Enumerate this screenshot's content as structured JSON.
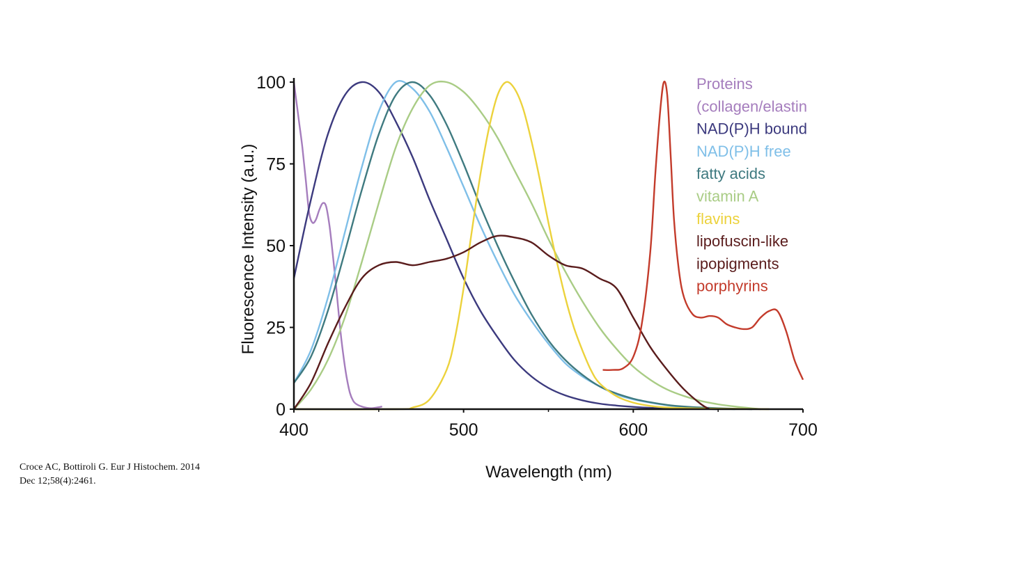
{
  "citation": {
    "line1": "Croce AC, Bottiroli G. Eur J Histochem. 2014",
    "line2": "Dec 12;58(4):2461."
  },
  "chart_data": {
    "type": "line",
    "title": "",
    "xlabel": "Wavelength (nm)",
    "ylabel": "Fluorescence Intensity (a.u.)",
    "xlim": [
      400,
      700
    ],
    "ylim": [
      0,
      100
    ],
    "xticks": [
      400,
      500,
      600,
      700
    ],
    "yticks": [
      0,
      25,
      50,
      75,
      100
    ],
    "grid": false,
    "legend_position": "top-right",
    "legend": [
      {
        "text": "Proteins",
        "color": "#a57dbd"
      },
      {
        "text": "(collagen/elastin",
        "color": "#a57dbd"
      },
      {
        "text": "NAD(P)H bound",
        "color": "#3c3a7e"
      },
      {
        "text": "NAD(P)H free",
        "color": "#7fbfe8"
      },
      {
        "text": "fatty acids",
        "color": "#3f7a80"
      },
      {
        "text": "vitamin A",
        "color": "#a9cc85"
      },
      {
        "text": "flavins",
        "color": "#ecd23c"
      },
      {
        "text": "lipofuscin-like",
        "color": "#5a1c1c"
      },
      {
        "text": "ipopigments",
        "color": "#5a1c1c"
      },
      {
        "text": "porphyrins",
        "color": "#c33b2b"
      }
    ],
    "series": [
      {
        "color": "#a57dbd",
        "x": [
          400,
          401,
          403,
          405,
          407,
          409,
          411,
          413,
          415,
          417,
          419,
          421,
          423,
          425,
          427,
          429,
          431,
          433,
          435,
          437,
          440,
          443,
          446,
          449,
          452
        ],
        "y": [
          100,
          96,
          88,
          80,
          70,
          60,
          57,
          58,
          61,
          63,
          62,
          56,
          47,
          37,
          26,
          17,
          10,
          5,
          2.5,
          1.5,
          0.8,
          0.4,
          0.3,
          0.5,
          0.8
        ]
      },
      {
        "color": "#3c3a7e",
        "x": [
          400,
          410,
          420,
          430,
          440,
          450,
          460,
          470,
          480,
          490,
          500,
          510,
          520,
          530,
          540,
          550,
          560,
          570,
          580,
          590,
          600,
          610,
          620,
          630,
          640,
          650
        ],
        "y": [
          40,
          64,
          84,
          96,
          100,
          97,
          88,
          77,
          64,
          52,
          40,
          30,
          22,
          15,
          10,
          6.5,
          4.2,
          2.7,
          1.7,
          1.1,
          0.7,
          0.4,
          0.25,
          0.15,
          0.1,
          0
        ]
      },
      {
        "color": "#7fbfe8",
        "x": [
          400,
          410,
          420,
          430,
          440,
          450,
          460,
          470,
          480,
          490,
          500,
          510,
          520,
          530,
          540,
          550,
          560,
          570,
          580,
          590,
          600,
          610,
          620,
          630,
          640,
          650,
          660
        ],
        "y": [
          8,
          18,
          34,
          54,
          74,
          91,
          100,
          98,
          91,
          80,
          68,
          56,
          45,
          35,
          27,
          20,
          14,
          10,
          7,
          4.5,
          3,
          2,
          1.2,
          0.7,
          0.4,
          0.2,
          0
        ]
      },
      {
        "color": "#3f7a80",
        "x": [
          400,
          410,
          420,
          430,
          440,
          450,
          460,
          470,
          480,
          490,
          500,
          510,
          520,
          530,
          540,
          550,
          560,
          570,
          580,
          590,
          600,
          610,
          620,
          630,
          640,
          650,
          660,
          670
        ],
        "y": [
          8,
          16,
          30,
          48,
          67,
          84,
          96,
          100,
          96,
          87,
          75,
          62,
          50,
          39,
          29,
          21,
          15,
          10.5,
          7,
          4.8,
          3.2,
          2.1,
          1.3,
          0.8,
          0.5,
          0.3,
          0.15,
          0
        ]
      },
      {
        "color": "#a9cc85",
        "x": [
          400,
          410,
          420,
          430,
          440,
          450,
          460,
          470,
          480,
          490,
          500,
          510,
          520,
          530,
          540,
          550,
          560,
          570,
          580,
          590,
          600,
          610,
          620,
          630,
          640,
          650,
          660,
          675
        ],
        "y": [
          0,
          6,
          15,
          28,
          45,
          63,
          80,
          92,
          99,
          100,
          97,
          91,
          83,
          73,
          63,
          52,
          42,
          33,
          25,
          18.5,
          13,
          9,
          6,
          4,
          2.5,
          1.5,
          0.8,
          0
        ]
      },
      {
        "color": "#ecd23c",
        "x": [
          400,
          460,
          470,
          480,
          490,
          495,
          500,
          505,
          510,
          515,
          520,
          525,
          530,
          535,
          540,
          545,
          550,
          555,
          560,
          565,
          570,
          575,
          580,
          590,
          600,
          610,
          620,
          640,
          660,
          680
        ],
        "y": [
          0,
          0,
          0.5,
          3,
          12,
          22,
          37,
          55,
          72,
          86,
          96,
          100,
          98,
          92,
          82,
          70,
          57,
          45,
          34,
          25,
          18,
          12,
          8,
          4,
          2,
          1,
          0.5,
          0.2,
          0.1,
          0
        ]
      },
      {
        "color": "#5a1c1c",
        "x": [
          400,
          410,
          420,
          430,
          440,
          450,
          460,
          470,
          480,
          490,
          500,
          510,
          520,
          530,
          540,
          550,
          560,
          570,
          580,
          590,
          600,
          610,
          620,
          630,
          640,
          645
        ],
        "y": [
          0,
          8,
          20,
          31,
          40,
          44,
          45,
          44,
          45,
          46,
          48,
          51,
          53,
          52.5,
          51,
          47,
          44,
          43,
          40,
          37,
          28,
          19,
          12,
          6,
          1.5,
          0
        ]
      },
      {
        "color": "#c33b2b",
        "x": [
          582,
          588,
          594,
          600,
          605,
          610,
          613,
          616,
          618,
          620,
          622,
          624,
          627,
          630,
          635,
          640,
          645,
          650,
          655,
          660,
          665,
          670,
          675,
          680,
          685,
          690,
          695,
          700
        ],
        "y": [
          12,
          12,
          12.5,
          16,
          26,
          48,
          72,
          92,
          100,
          96,
          78,
          58,
          42,
          34,
          29,
          28,
          28.5,
          28,
          26,
          25,
          24.5,
          25,
          28,
          30,
          30,
          24,
          15,
          9
        ]
      }
    ]
  }
}
